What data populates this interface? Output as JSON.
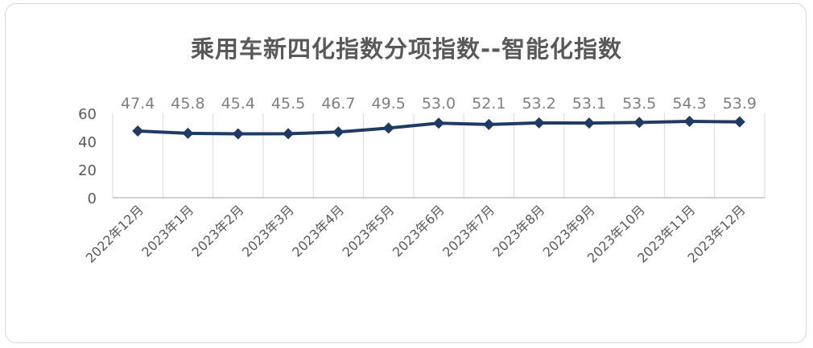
{
  "chart_data": {
    "type": "line",
    "title": "乘用车新四化指数分项指数--智能化指数",
    "categories": [
      "2022年12月",
      "2023年1月",
      "2023年2月",
      "2023年3月",
      "2023年4月",
      "2023年5月",
      "2023年6月",
      "2023年7月",
      "2023年8月",
      "2023年9月",
      "2023年10月",
      "2023年11月",
      "2023年12月"
    ],
    "values": [
      47.4,
      45.8,
      45.4,
      45.5,
      46.7,
      49.5,
      53.0,
      52.1,
      53.2,
      53.1,
      53.5,
      54.3,
      53.9
    ],
    "value_labels": [
      "47.4",
      "45.8",
      "45.4",
      "45.5",
      "46.7",
      "49.5",
      "53.0",
      "52.1",
      "53.2",
      "53.1",
      "53.5",
      "54.3",
      "53.9"
    ],
    "y_ticks": [
      "0",
      "20",
      "40",
      "60"
    ],
    "ylim": [
      0,
      60
    ],
    "grid": "vertical",
    "legend": "none",
    "colors": {
      "line": "#1f3b63",
      "marker": "#1f3b63",
      "grid": "#d9d9d9",
      "axis": "#bfbfbf"
    }
  }
}
